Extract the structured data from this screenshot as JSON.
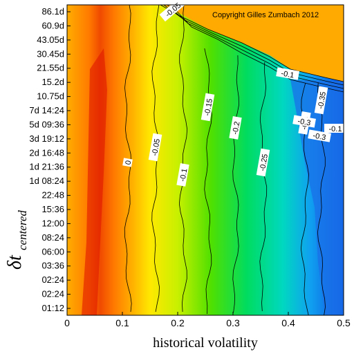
{
  "chart_data": {
    "type": "heatmap",
    "title": "",
    "xlabel": "historical volatility",
    "ylabel_main": "δt",
    "ylabel_sub": "centered",
    "xlim": [
      0,
      0.5
    ],
    "x_ticks": [
      "0",
      "0.1",
      "0.2",
      "0.3",
      "0.4",
      "0.5"
    ],
    "y_ticks": [
      "86.1d",
      "60.9d",
      "43.05d",
      "30.45d",
      "21.55d",
      "15.2d",
      "10.75d",
      "7d 14:24",
      "5d 09:36",
      "3d 19:12",
      "2d 16:48",
      "1d 21:36",
      "1d 08:24",
      "22:48",
      "15:36",
      "12:00",
      "08:24",
      "06:00",
      "03:36",
      "02:24",
      "02:24",
      "01:12"
    ],
    "contour_levels": [
      {
        "label": "0",
        "x": 0.11
      },
      {
        "label": "-0.05",
        "x": 0.16
      },
      {
        "label": "-0.1",
        "x": 0.21
      },
      {
        "label": "-0.15",
        "x": 0.255
      },
      {
        "label": "-0.2",
        "x": 0.305
      },
      {
        "label": "-0.25",
        "x": 0.355
      },
      {
        "label": "-0.3",
        "x": 0.43
      },
      {
        "label": "-0.35",
        "x": 0.46
      }
    ],
    "extra_labels": [
      "-0.05",
      "-0.1",
      "-0.3",
      "-0.1",
      "-0.3"
    ],
    "colorscale": [
      "#e01800",
      "#ff6a00",
      "#ffb000",
      "#ffee00",
      "#b8f000",
      "#30e000",
      "#00e0a0",
      "#00b0f0",
      "#1060e0"
    ],
    "copyright": "Copyright Gilles Zumbach 2012",
    "grid": false,
    "legend": "none"
  }
}
